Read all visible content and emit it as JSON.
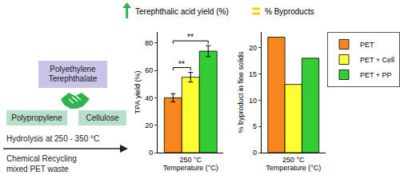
{
  "diagram": {
    "boxes": [
      {
        "lines": [
          "Polyethylene",
          "Terephthalate"
        ]
      },
      {
        "lines": [
          "Polypropylene"
        ]
      },
      {
        "lines": [
          "Cellulose"
        ]
      }
    ],
    "arrow": {
      "above": "Hydrolysis at 250 - 350 °C",
      "below": [
        "Chemical Recycling",
        "mixed PET waste"
      ]
    }
  },
  "chart_data": [
    {
      "type": "bar",
      "title": "Terephthalic acid yield (%)",
      "x_label": "Temperature (°C)",
      "y_label": "TPA yield (%)",
      "categories": [
        "250 °C"
      ],
      "series": [
        {
          "name": "PET",
          "color": "#f7861e",
          "values": [
            40
          ],
          "error": [
            3
          ]
        },
        {
          "name": "PET + Cell",
          "color": "#ffff33",
          "values": [
            55
          ],
          "error": [
            3.5
          ]
        },
        {
          "name": "PET + PP",
          "color": "#33cc33",
          "values": [
            74
          ],
          "error": [
            4
          ]
        }
      ],
      "ylim": [
        0,
        88
      ],
      "yticks": [
        0,
        20,
        40,
        60,
        80
      ],
      "annotations": [
        {
          "text": "**",
          "from": "PET",
          "to": "PET + Cell"
        },
        {
          "text": "**",
          "from": "PET",
          "to": "PET + PP"
        }
      ]
    },
    {
      "type": "bar",
      "title": "% Byproducts",
      "x_label": "Temperature (°C)",
      "y_label": "% byproduct in fine solids",
      "categories": [
        "250 °C"
      ],
      "series": [
        {
          "name": "PET",
          "color": "#f7861e",
          "values": [
            22
          ]
        },
        {
          "name": "PET + Cell",
          "color": "#ffff33",
          "values": [
            13
          ]
        },
        {
          "name": "PET + PP",
          "color": "#33cc33",
          "values": [
            18
          ]
        }
      ],
      "ylim": [
        0,
        23
      ],
      "yticks": [
        0,
        5,
        10,
        15,
        20
      ],
      "legend": "right"
    }
  ]
}
